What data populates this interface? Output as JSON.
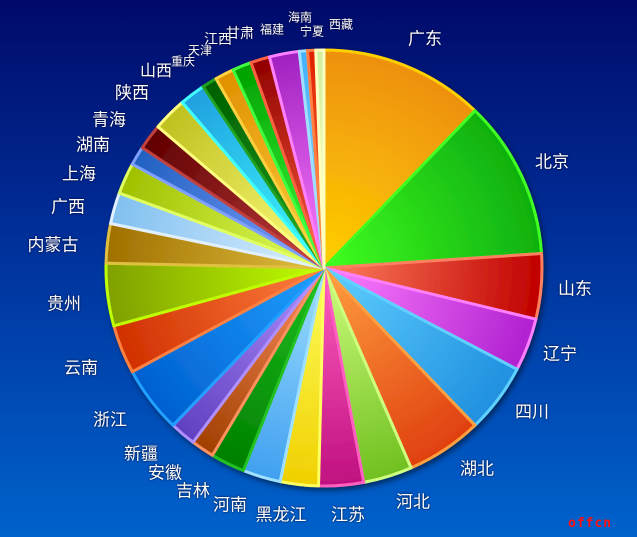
{
  "chart_data": {
    "type": "pie",
    "title": "",
    "start_angle": "12 o'clock, clockwise",
    "categories": [
      "广东",
      "北京",
      "山东",
      "辽宁",
      "四川",
      "湖北",
      "河北",
      "江苏",
      "黑龙江",
      "河南",
      "吉林",
      "安徽",
      "新疆",
      "浙江",
      "云南",
      "贵州",
      "内蒙古",
      "广西",
      "上海",
      "湖南",
      "青海",
      "陕西",
      "山西",
      "重庆",
      "天津",
      "江西",
      "甘肃",
      "福建",
      "海南",
      "宁夏",
      "西藏"
    ],
    "values": [
      12.1,
      11.7,
      4.8,
      3.9,
      5.1,
      5.6,
      3.6,
      3.3,
      2.8,
      2.8,
      2.5,
      1.7,
      1.9,
      4.9,
      3.6,
      4.6,
      2.9,
      2.3,
      2.3,
      1.4,
      1.9,
      2.5,
      1.9,
      1.1,
      1.4,
      1.4,
      1.4,
      2.2,
      0.6,
      0.6,
      0.6
    ],
    "colors": [
      "#ee9010",
      "#10b010",
      "#c00000",
      "#b020d0",
      "#2090e0",
      "#e04010",
      "#70c020",
      "#c01080",
      "#f0d000",
      "#40a0f0",
      "#008000",
      "#a04000",
      "#6040c0",
      "#0060d0",
      "#d03000",
      "#80a000",
      "#a07000",
      "#80c0f0",
      "#a0c000",
      "#2060c0",
      "#600000",
      "#c0c020",
      "#20a0e0",
      "#006000",
      "#e09000",
      "#00a000",
      "#900000",
      "#a020c0",
      "#40b0ff",
      "#e02000",
      "#d0f0a0"
    ],
    "edge_colors": [
      "#ffd000",
      "#40ff20",
      "#ff8060",
      "#ff80ff",
      "#60d0ff",
      "#ffa040",
      "#d0ff80",
      "#ff60c0",
      "#ffff60",
      "#a0e0ff",
      "#20c020",
      "#ff9060",
      "#b090ff",
      "#20a0ff",
      "#ff8040",
      "#c0ff00",
      "#e0c040",
      "#e0f0ff",
      "#e0ff60",
      "#80a0ff",
      "#c04040",
      "#ffff80",
      "#40ffff",
      "#20a020",
      "#ffd040",
      "#40ff40",
      "#ff6040",
      "#ff80ff",
      "#a0e0ff",
      "#ff8040",
      "#ffffc0"
    ],
    "legend": "labels beside slices"
  },
  "watermark": "offcn"
}
